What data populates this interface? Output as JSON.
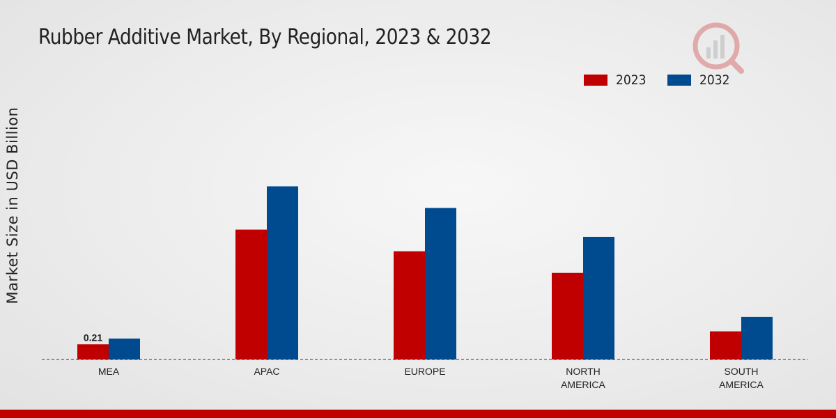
{
  "chart_data": {
    "type": "bar",
    "title": "Rubber Additive Market, By Regional, 2023 & 2032",
    "ylabel": "Market Size in USD Billion",
    "xlabel": "",
    "categories": [
      "MEA",
      "APAC",
      "EUROPE",
      "NORTH AMERICA",
      "SOUTH AMERICA"
    ],
    "series": [
      {
        "name": "2023",
        "color": "#c00000",
        "values": [
          0.21,
          1.8,
          1.5,
          1.2,
          0.39
        ]
      },
      {
        "name": "2032",
        "color": "#004a8f",
        "values": [
          0.29,
          2.4,
          2.1,
          1.7,
          0.59
        ]
      }
    ],
    "data_labels": [
      {
        "series": 0,
        "index": 0,
        "text": "0.21"
      }
    ],
    "ylim": [
      0,
      4.5
    ],
    "grid": false,
    "legend": "top-right"
  },
  "colors": {
    "accent": "#c00000",
    "secondary": "#004a8f"
  }
}
